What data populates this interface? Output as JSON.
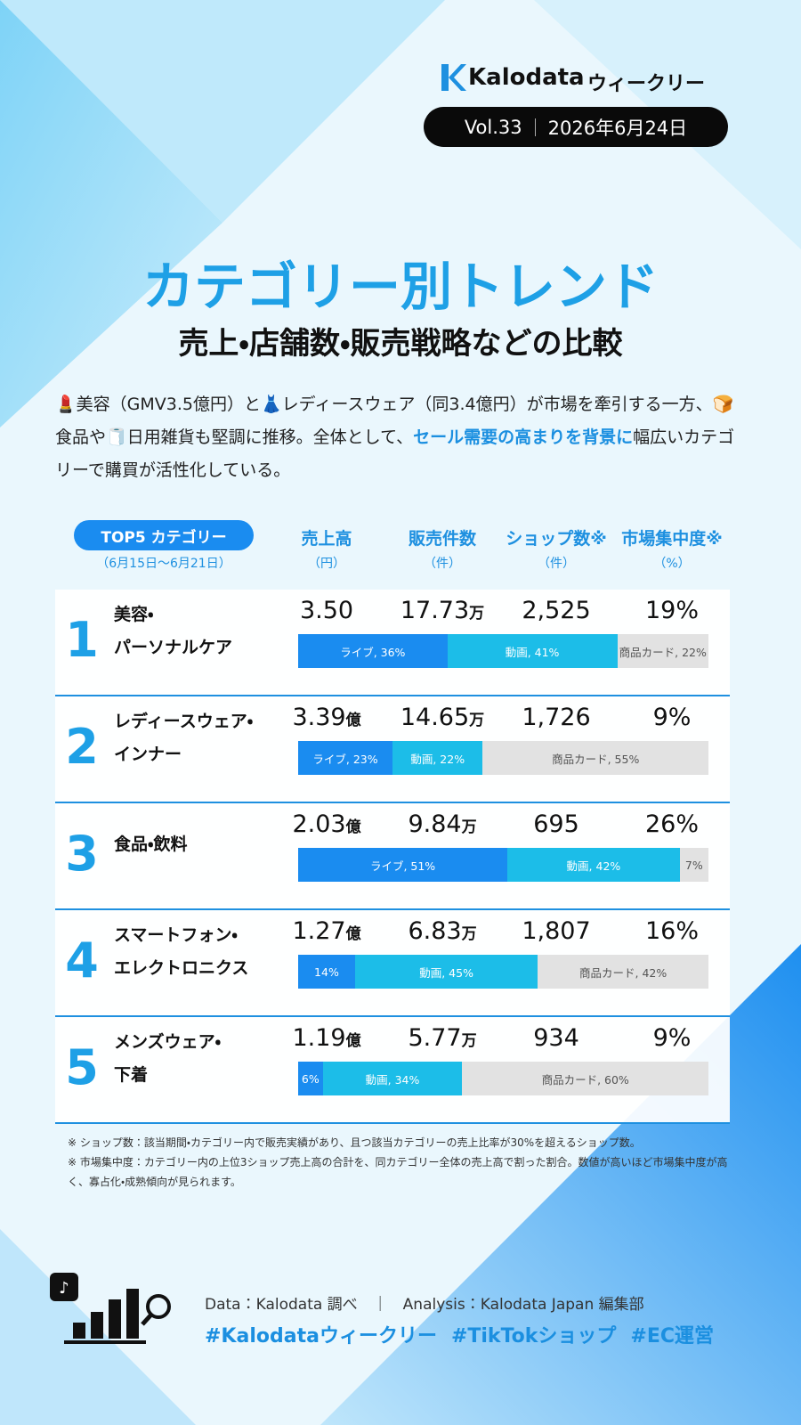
{
  "header": {
    "brand": "Kalodata",
    "series": "ウィークリー",
    "volume": "Vol.33",
    "date": "2026年6月24日"
  },
  "title": "カテゴリー別トレンド",
  "subtitle": "売上・店舗数・販売戦略などの比較",
  "intro": {
    "before": "💄美容（GMV3.5億円）と👗レディースウェア（同3.4億円）が市場を牽引する一方、🍞食品や🧻日用雑貨も堅調に推移。全体として、",
    "highlight": "セール需要の高まりを背景に",
    "after": "幅広いカテゴリーで購買が活性化している。"
  },
  "table": {
    "badge": "TOP5 カテゴリー",
    "period": "（6月15日〜6月21日）",
    "columns": [
      {
        "name": "売上高",
        "unit": "（円）"
      },
      {
        "name": "販売件数",
        "unit": "（件）"
      },
      {
        "name": "ショップ数※",
        "unit": "（件）"
      },
      {
        "name": "市場集中度※",
        "unit": "（%）"
      }
    ],
    "rows": [
      {
        "rank": 1,
        "name": [
          "美容・",
          "パーソナルケア"
        ],
        "sales": "3.50",
        "orders": "17.73",
        "orders_unit": "万",
        "shops": "2,525",
        "concentration": "19%",
        "segments": [
          {
            "value": 36,
            "label": "ライブ, 36%",
            "color": "#1a8cf0"
          },
          {
            "value": 41,
            "label": "動画, 41%",
            "color": "#1cbde8"
          },
          {
            "value": 22,
            "label": "商品カード, 22%",
            "color": "#e2e2e2"
          }
        ]
      },
      {
        "rank": 2,
        "name": [
          "レディースウェア・",
          "インナー"
        ],
        "sales": "3.39",
        "sales_unit": "億",
        "orders": "14.65",
        "orders_unit": "万",
        "shops": "1,726",
        "concentration": "9%",
        "segments": [
          {
            "value": 23,
            "label": "ライブ, 23%",
            "color": "#1a8cf0"
          },
          {
            "value": 22,
            "label": "動画, 22%",
            "color": "#1cbde8"
          },
          {
            "value": 55,
            "label": "商品カード, 55%",
            "color": "#e2e2e2"
          }
        ]
      },
      {
        "rank": 3,
        "name": [
          "食品・飲料"
        ],
        "sales": "2.03",
        "sales_unit": "億",
        "orders": "9.84",
        "orders_unit": "万",
        "shops": "695",
        "concentration": "26%",
        "segments": [
          {
            "value": 51,
            "label": "ライブ, 51%",
            "color": "#1a8cf0"
          },
          {
            "value": 42,
            "label": "動画, 42%",
            "color": "#1cbde8"
          },
          {
            "value": 7,
            "label": "7%",
            "color": "#e2e2e2"
          }
        ]
      },
      {
        "rank": 4,
        "name": [
          "スマートフォン・",
          "エレクトロニクス"
        ],
        "sales": "1.27",
        "sales_unit": "億",
        "orders": "6.83",
        "orders_unit": "万",
        "shops": "1,807",
        "concentration": "16%",
        "segments": [
          {
            "value": 14,
            "label": "14%",
            "color": "#1a8cf0"
          },
          {
            "value": 45,
            "label": "動画, 45%",
            "color": "#1cbde8"
          },
          {
            "value": 42,
            "label": "商品カード, 42%",
            "color": "#e2e2e2"
          }
        ]
      },
      {
        "rank": 5,
        "name": [
          "メンズウェア・",
          "下着"
        ],
        "sales": "1.19",
        "sales_unit": "億",
        "orders": "5.77",
        "orders_unit": "万",
        "shops": "934",
        "concentration": "9%",
        "segments": [
          {
            "value": 6,
            "label": "6%",
            "color": "#1a8cf0"
          },
          {
            "value": 34,
            "label": "動画, 34%",
            "color": "#1cbde8"
          },
          {
            "value": 60,
            "label": "商品カード, 60%",
            "color": "#e2e2e2"
          }
        ]
      }
    ]
  },
  "notes": [
    "※ ショップ数：該当期間・カテゴリー内で販売実績があり、且つ該当カテゴリーの売上比率が30%を超えるショップ数。",
    "※ 市場集中度：カテゴリー内の上位3ショップ売上高の合計を、同カテゴリー全体の売上高で割った割合。数値が高いほど市場集中度が高く、寡占化・成熟傾向が見られます。"
  ],
  "footer": {
    "credit": "Data：Kalodata 調べ　｜　Analysis：Kalodata Japan 編集部",
    "hashtags": [
      "#Kalodataウィークリー",
      "#TikTokショップ",
      "#EC運営"
    ]
  }
}
